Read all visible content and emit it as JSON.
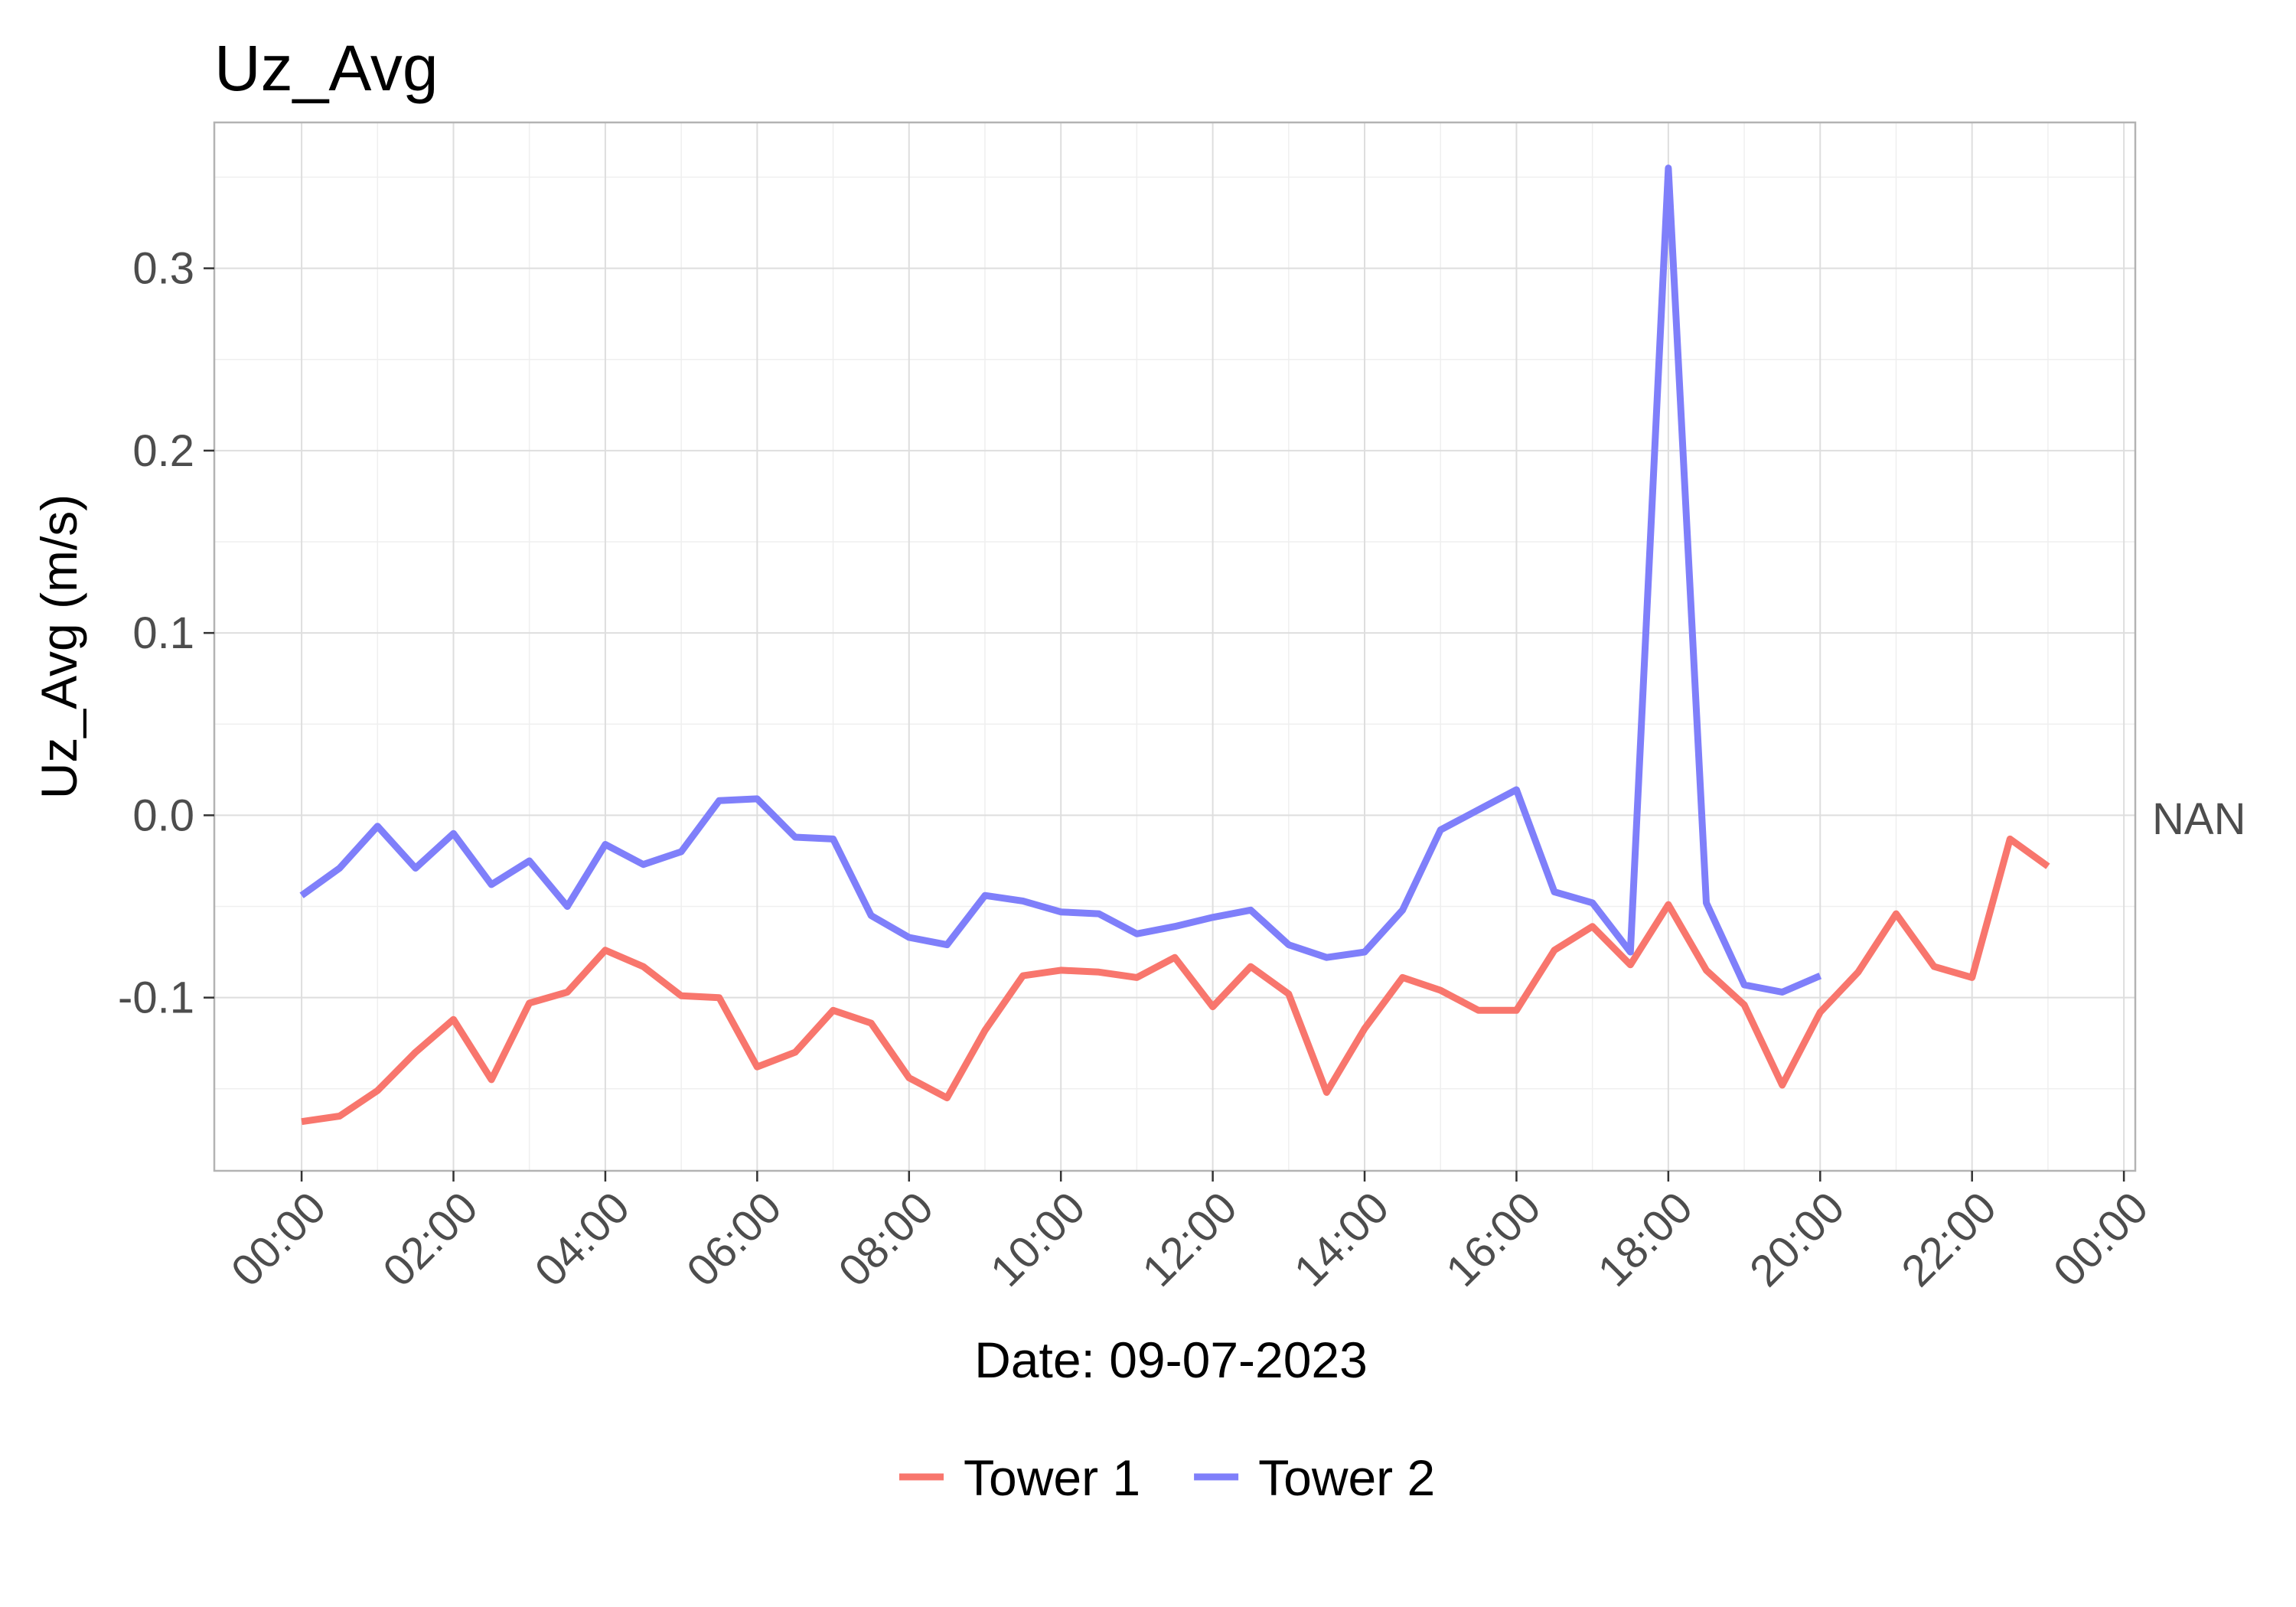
{
  "chart_data": {
    "type": "line",
    "title": "Uz_Avg",
    "xlabel": "Date: 09-07-2023",
    "ylabel": "Uz_Avg (m/s)",
    "x_unit": "time of day (hours)",
    "xlim": [
      -1.15,
      24.15
    ],
    "ylim": [
      -0.195,
      0.38
    ],
    "x_ticks": [
      0,
      2,
      4,
      6,
      8,
      10,
      12,
      14,
      16,
      18,
      20,
      22,
      24
    ],
    "x_tick_labels": [
      "00:00",
      "02:00",
      "04:00",
      "06:00",
      "08:00",
      "10:00",
      "12:00",
      "14:00",
      "16:00",
      "18:00",
      "20:00",
      "22:00",
      "00:00"
    ],
    "y_ticks": [
      -0.1,
      0.0,
      0.1,
      0.2,
      0.3
    ],
    "y_tick_labels": [
      "-0.1",
      "0.0",
      "0.1",
      "0.2",
      "0.3"
    ],
    "right_label": "NAN",
    "grid": true,
    "legend_position": "bottom",
    "x": [
      0,
      0.5,
      1,
      1.5,
      2,
      2.5,
      3,
      3.5,
      4,
      4.5,
      5,
      5.5,
      6,
      6.5,
      7,
      7.5,
      8,
      8.5,
      9,
      9.5,
      10,
      10.5,
      11,
      11.5,
      12,
      12.5,
      13,
      13.5,
      14,
      14.5,
      15,
      15.5,
      16,
      16.5,
      17,
      17.5,
      18,
      18.5,
      19,
      19.5,
      20,
      20.5,
      21,
      21.5,
      22,
      22.5,
      23
    ],
    "series": [
      {
        "name": "Tower 1",
        "color": "#F8766D",
        "values": [
          -0.168,
          -0.165,
          -0.151,
          -0.13,
          -0.112,
          -0.145,
          -0.103,
          -0.097,
          -0.074,
          -0.083,
          -0.099,
          -0.1,
          -0.138,
          -0.13,
          -0.107,
          -0.114,
          -0.144,
          -0.155,
          -0.118,
          -0.088,
          -0.085,
          -0.086,
          -0.089,
          -0.078,
          -0.105,
          -0.083,
          -0.098,
          -0.152,
          -0.117,
          -0.089,
          -0.096,
          -0.107,
          -0.107,
          -0.074,
          -0.061,
          -0.082,
          -0.049,
          -0.085,
          -0.104,
          -0.148,
          -0.108,
          -0.086,
          -0.054,
          -0.083,
          -0.089,
          -0.013,
          -0.028
        ]
      },
      {
        "name": "Tower 2",
        "color": "#7F7FFA",
        "values": [
          -0.044,
          -0.029,
          -0.006,
          -0.029,
          -0.01,
          -0.038,
          -0.025,
          -0.05,
          -0.016,
          -0.027,
          -0.02,
          0.008,
          0.009,
          -0.012,
          -0.013,
          -0.055,
          -0.067,
          -0.071,
          -0.044,
          -0.047,
          -0.053,
          -0.054,
          -0.065,
          -0.061,
          -0.056,
          -0.052,
          -0.071,
          -0.078,
          -0.075,
          -0.052,
          -0.008,
          0.003,
          0.014,
          -0.042,
          -0.048,
          -0.075,
          0.355,
          -0.048,
          -0.093,
          -0.097,
          -0.088,
          null,
          null,
          null,
          null,
          null,
          null
        ]
      }
    ]
  }
}
